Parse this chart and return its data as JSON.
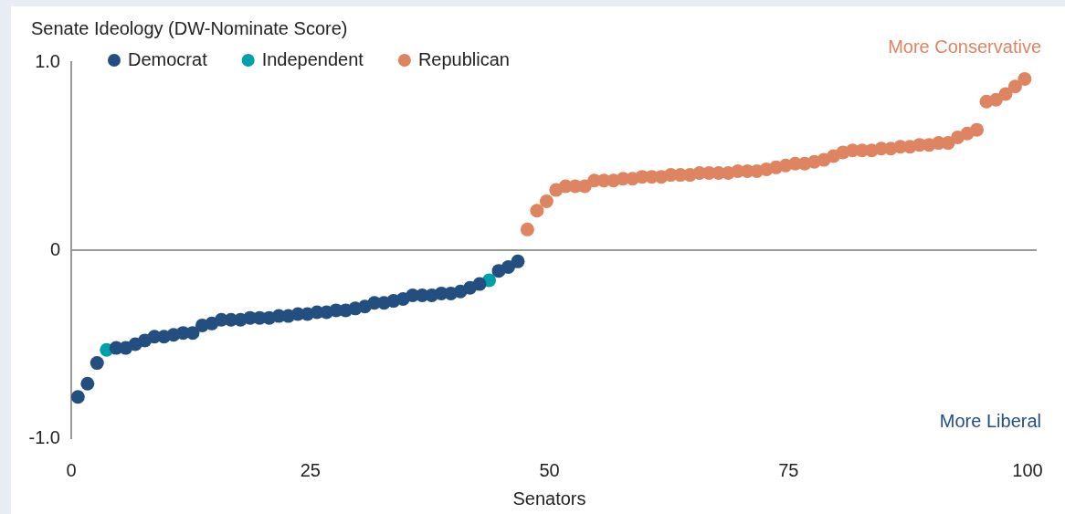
{
  "chart_data": {
    "type": "scatter",
    "ylabel": "Senate Ideology (DW-Nominate Score)",
    "xlabel": "Senators",
    "xlim": [
      0,
      100
    ],
    "xticks": [
      0,
      25,
      50,
      75,
      100
    ],
    "ylim": [
      -1,
      1
    ],
    "yticks": [
      {
        "value": -1,
        "label": "-1.0"
      },
      0,
      {
        "value": 1,
        "label": "1.0"
      }
    ],
    "grid": false,
    "legend": "top left",
    "marker": "circle",
    "ref_lines": [
      {
        "axis": "y",
        "value": 0,
        "color": "#999999"
      }
    ],
    "annotations": [
      "More Conservative",
      "More Liberal"
    ],
    "series": [
      {
        "name": "Democrat",
        "color": "#234f80",
        "x": [
          0.7,
          1.7,
          2.7,
          4.7,
          5.7,
          6.7,
          7.7,
          8.7,
          9.7,
          10.7,
          11.7,
          12.7,
          13.7,
          14.7,
          15.7,
          16.7,
          17.7,
          18.7,
          19.7,
          20.7,
          21.7,
          22.7,
          23.7,
          24.7,
          25.7,
          26.7,
          27.7,
          28.7,
          29.7,
          30.7,
          31.7,
          32.7,
          33.7,
          34.7,
          35.7,
          36.7,
          37.7,
          38.7,
          39.7,
          40.7,
          41.7,
          42.7,
          44.7,
          45.7,
          46.7
        ],
        "values": [
          -0.78,
          -0.71,
          -0.6,
          -0.52,
          -0.52,
          -0.5,
          -0.48,
          -0.46,
          -0.46,
          -0.45,
          -0.44,
          -0.44,
          -0.4,
          -0.39,
          -0.37,
          -0.37,
          -0.37,
          -0.36,
          -0.36,
          -0.36,
          -0.35,
          -0.35,
          -0.34,
          -0.34,
          -0.33,
          -0.33,
          -0.32,
          -0.32,
          -0.31,
          -0.3,
          -0.28,
          -0.28,
          -0.27,
          -0.26,
          -0.24,
          -0.24,
          -0.24,
          -0.23,
          -0.23,
          -0.22,
          -0.2,
          -0.18,
          -0.11,
          -0.09,
          -0.06
        ]
      },
      {
        "name": "Independent",
        "color": "#00a0aa",
        "x": [
          3.7,
          43.7
        ],
        "values": [
          -0.53,
          -0.16
        ]
      },
      {
        "name": "Republican",
        "color": "#de8460",
        "x": [
          47.7,
          48.7,
          49.7,
          50.7,
          51.7,
          52.7,
          53.7,
          54.7,
          55.7,
          56.7,
          57.7,
          58.7,
          59.7,
          60.7,
          61.7,
          62.7,
          63.7,
          64.7,
          65.7,
          66.7,
          67.7,
          68.7,
          69.7,
          70.7,
          71.7,
          72.7,
          73.7,
          74.7,
          75.7,
          76.7,
          77.7,
          78.7,
          79.7,
          80.7,
          81.7,
          82.7,
          83.7,
          84.7,
          85.7,
          86.7,
          87.7,
          88.7,
          89.7,
          90.7,
          91.7,
          92.7,
          93.7,
          94.7,
          95.7,
          96.7,
          97.7,
          98.7,
          99.7
        ],
        "values": [
          0.11,
          0.21,
          0.26,
          0.32,
          0.34,
          0.34,
          0.34,
          0.37,
          0.37,
          0.37,
          0.38,
          0.38,
          0.39,
          0.39,
          0.39,
          0.4,
          0.4,
          0.4,
          0.41,
          0.41,
          0.41,
          0.41,
          0.42,
          0.42,
          0.42,
          0.43,
          0.44,
          0.45,
          0.46,
          0.46,
          0.47,
          0.48,
          0.5,
          0.52,
          0.53,
          0.53,
          0.53,
          0.54,
          0.54,
          0.55,
          0.55,
          0.56,
          0.56,
          0.57,
          0.57,
          0.6,
          0.62,
          0.64,
          0.79,
          0.8,
          0.83,
          0.87,
          0.91
        ]
      }
    ]
  }
}
